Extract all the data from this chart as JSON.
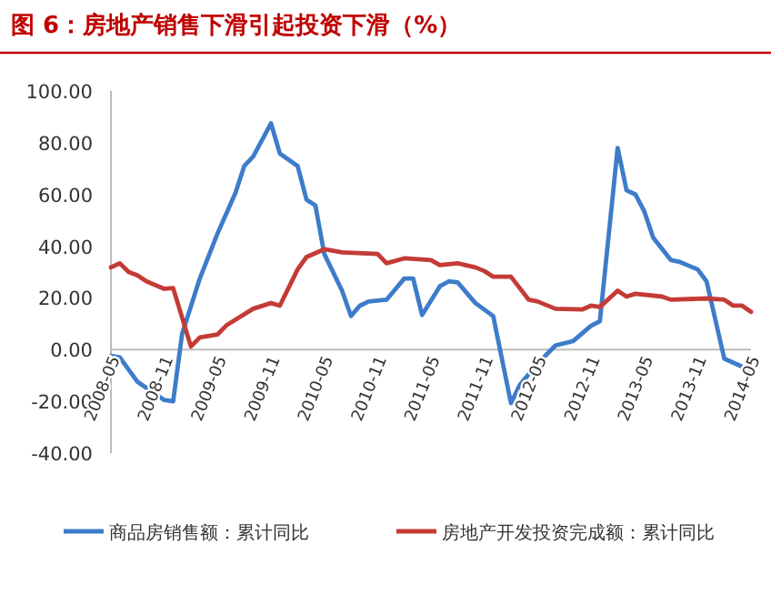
{
  "chart_data": {
    "type": "line",
    "title": "图 6：房地产销售下滑引起投资下滑（%）",
    "xlim": [
      "2008-05",
      "2014-05"
    ],
    "xticks": [
      "2008-05",
      "2008-11",
      "2009-05",
      "2009-11",
      "2010-05",
      "2010-11",
      "2011-05",
      "2011-11",
      "2012-05",
      "2012-11",
      "2013-05",
      "2013-11",
      "2014-05"
    ],
    "ylim": [
      -40,
      100
    ],
    "yticks": [
      {
        "value": -40,
        "label": "-40.00"
      },
      {
        "value": -20,
        "label": "-20.00"
      },
      {
        "value": 0,
        "label": "0.00"
      },
      {
        "value": 20,
        "label": "20.00"
      },
      {
        "value": 40,
        "label": "40.00"
      },
      {
        "value": 60,
        "label": "60.00"
      },
      {
        "value": 80,
        "label": "80.00"
      },
      {
        "value": 100,
        "label": "100.00"
      }
    ],
    "grid": false,
    "legend": "bottom",
    "marker": "none",
    "line_style": "solid",
    "series": [
      {
        "name": "商品房销售额：累计同比",
        "color": "#3d7cc9",
        "x": [
          "2008-05",
          "2008-06",
          "2008-08",
          "2008-11",
          "2008-12",
          "2009-01",
          "2009-03",
          "2009-05",
          "2009-07",
          "2009-08",
          "2009-09",
          "2009-11",
          "2009-12",
          "2010-02",
          "2010-03",
          "2010-04",
          "2010-05",
          "2010-07",
          "2010-08",
          "2010-09",
          "2010-10",
          "2010-12",
          "2011-02",
          "2011-03",
          "2011-04",
          "2011-06",
          "2011-07",
          "2011-08",
          "2011-10",
          "2011-12",
          "2012-02",
          "2012-03",
          "2012-05",
          "2012-07",
          "2012-09",
          "2012-11",
          "2012-12",
          "2013-02",
          "2013-03",
          "2013-04",
          "2013-05",
          "2013-06",
          "2013-08",
          "2013-09",
          "2013-11",
          "2013-12",
          "2014-02",
          "2014-04",
          "2014-05"
        ],
        "values": [
          -2.4,
          -3,
          -12.5,
          -19.5,
          -20,
          6,
          27.5,
          45,
          60.5,
          71,
          74.6,
          87.5,
          75.8,
          71,
          58,
          55.8,
          37,
          22.8,
          13,
          17,
          18.6,
          19.3,
          27.5,
          27.5,
          13.4,
          24.5,
          26.4,
          26,
          18,
          13,
          -20.7,
          -13.6,
          -5.4,
          1.6,
          3.3,
          9.2,
          11,
          78,
          61.6,
          60,
          53.4,
          43.3,
          34.6,
          33.9,
          31,
          26.4,
          -3.5,
          -6.6,
          -8.2
        ]
      },
      {
        "name": "房地产开发投资完成额：累计同比",
        "color": "#c43b36",
        "x": [
          "2008-05",
          "2008-06",
          "2008-07",
          "2008-08",
          "2008-09",
          "2008-11",
          "2008-12",
          "2009-02",
          "2009-03",
          "2009-05",
          "2009-06",
          "2009-09",
          "2009-11",
          "2009-12",
          "2010-02",
          "2010-03",
          "2010-05",
          "2010-07",
          "2010-11",
          "2010-12",
          "2011-02",
          "2011-05",
          "2011-06",
          "2011-08",
          "2011-10",
          "2011-11",
          "2011-12",
          "2012-02",
          "2012-04",
          "2012-05",
          "2012-07",
          "2012-10",
          "2012-11",
          "2012-12",
          "2013-02",
          "2013-03",
          "2013-04",
          "2013-07",
          "2013-08",
          "2013-12",
          "2014-02",
          "2014-03",
          "2014-04",
          "2014-05"
        ],
        "values": [
          31.8,
          33.4,
          30,
          28.7,
          26.4,
          23.5,
          23.8,
          1.2,
          4.7,
          5.9,
          9.4,
          15.8,
          18,
          17,
          31,
          35.8,
          38.8,
          37.6,
          37,
          33.4,
          35.3,
          34.6,
          32.7,
          33.4,
          31.8,
          30.4,
          28.2,
          28.2,
          19.3,
          18.6,
          15.8,
          15.5,
          17,
          16.5,
          22.8,
          20.5,
          21.6,
          20.5,
          19.3,
          19.8,
          19.3,
          17,
          17,
          14.6
        ]
      }
    ]
  }
}
